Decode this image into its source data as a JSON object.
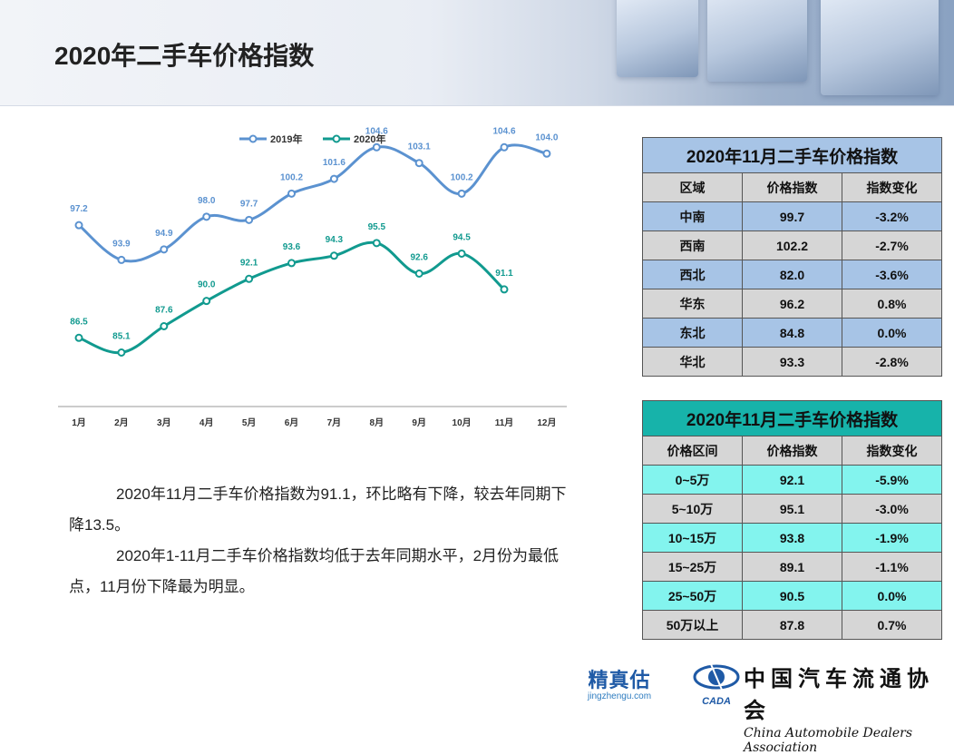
{
  "title": "2020年二手车价格指数",
  "chart_data": {
    "type": "line",
    "categories": [
      "1月",
      "2月",
      "3月",
      "4月",
      "5月",
      "6月",
      "7月",
      "8月",
      "9月",
      "10月",
      "11月",
      "12月"
    ],
    "series": [
      {
        "name": "2019年",
        "color": "#5b92d0",
        "values": [
          97.2,
          93.9,
          94.9,
          98.0,
          97.7,
          100.2,
          101.6,
          104.6,
          103.1,
          100.2,
          104.6,
          104.0
        ]
      },
      {
        "name": "2020年",
        "color": "#119a8f",
        "values": [
          86.5,
          85.1,
          87.6,
          90.0,
          92.1,
          93.6,
          94.3,
          95.5,
          92.6,
          94.5,
          91.1,
          null
        ]
      }
    ],
    "legend_position": "top",
    "grid": false
  },
  "summary": {
    "p1": "2020年11月二手车价格指数为91.1，环比略有下降，较去年同期下降13.5。",
    "p2": "2020年1-11月二手车价格指数均低于去年同期水平，2月份为最低点，11月份下降最为明显。"
  },
  "table_region": {
    "title": "2020年11月二手车价格指数",
    "headers": [
      "区域",
      "价格指数",
      "指数变化"
    ],
    "rows": [
      [
        "中南",
        "99.7",
        "-3.2%"
      ],
      [
        "西南",
        "102.2",
        "-2.7%"
      ],
      [
        "西北",
        "82.0",
        "-3.6%"
      ],
      [
        "华东",
        "96.2",
        "0.8%"
      ],
      [
        "东北",
        "84.8",
        "0.0%"
      ],
      [
        "华北",
        "93.3",
        "-2.8%"
      ]
    ]
  },
  "table_price": {
    "title": "2020年11月二手车价格指数",
    "headers": [
      "价格区间",
      "价格指数",
      "指数变化"
    ],
    "rows": [
      [
        "0~5万",
        "92.1",
        "-5.9%"
      ],
      [
        "5~10万",
        "95.1",
        "-3.0%"
      ],
      [
        "10~15万",
        "93.8",
        "-1.9%"
      ],
      [
        "15~25万",
        "89.1",
        "-1.1%"
      ],
      [
        "25~50万",
        "90.5",
        "0.0%"
      ],
      [
        "50万以上",
        "87.8",
        "0.7%"
      ]
    ]
  },
  "logos": {
    "jzg_name": "精真估",
    "jzg_site": "jingzhengu.com",
    "cada_abbr": "CADA",
    "cada_cn": "中国汽车流通协会",
    "cada_en": "China Automobile Dealers Association"
  }
}
